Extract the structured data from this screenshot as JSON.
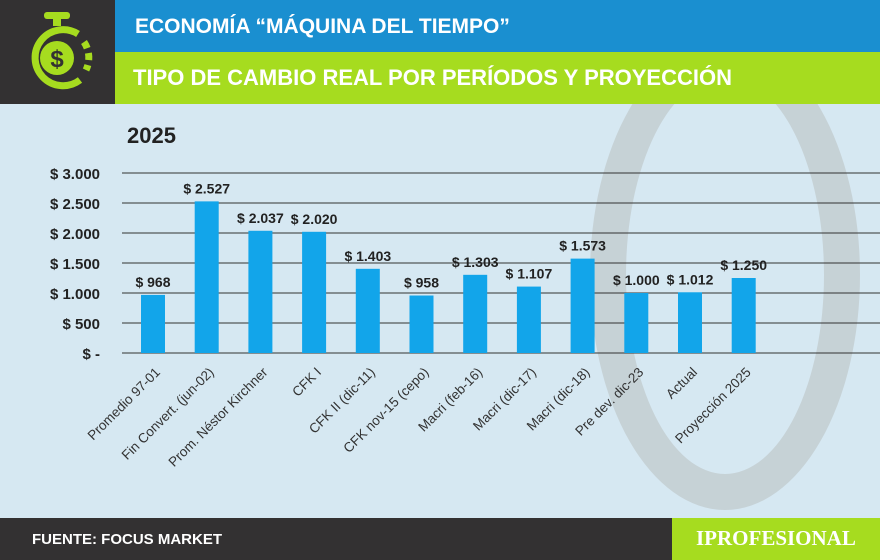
{
  "header": {
    "title": "ECONOMÍA “MÁQUINA DEL TIEMPO”",
    "subtitle": "TIPO DE CAMBIO REAL POR PERÍODOS Y PROYECCIÓN",
    "logo_icon": "stopwatch-dollar-icon"
  },
  "colors": {
    "bar": "#12a5ea",
    "blue": "#1a8fd0",
    "green": "#a6dc1f",
    "dark": "#333132"
  },
  "chart_data": {
    "type": "bar",
    "title": "2025",
    "ylim": [
      0,
      3000
    ],
    "grid": true,
    "yticks": [
      0,
      500,
      1000,
      1500,
      2000,
      2500,
      3000
    ],
    "ytick_labels": [
      "$ -",
      "$ 500",
      "$ 1.000",
      "$ 1.500",
      "$ 2.000",
      "$ 2.500",
      "$ 3.000"
    ],
    "categories": [
      "Promedio 97-01",
      "Fin Convert. (jun-02)",
      "Prom. Néstor Kirchner",
      "CFK I",
      "CFK II (dic-11)",
      "CFK nov-15 (cepo)",
      "Macri (feb-16)",
      "Macri (dic-17)",
      "Macri (dic-18)",
      "Pre dev. dic-23",
      "Actual",
      "Proyección 2025"
    ],
    "values": [
      968,
      2527,
      2037,
      2020,
      1403,
      958,
      1303,
      1107,
      1573,
      1000,
      1012,
      1250
    ],
    "data_labels": [
      "$ 968",
      "$ 2.527",
      "$ 2.037",
      "$ 2.020",
      "$ 1.403",
      "$ 958",
      "$ 1.303",
      "$ 1.107",
      "$ 1.573",
      "$ 1.000",
      "$ 1.012",
      "$ 1.250"
    ]
  },
  "footer": {
    "source": "FUENTE: FOCUS MARKET",
    "brand": "IPROFESIONAL"
  }
}
